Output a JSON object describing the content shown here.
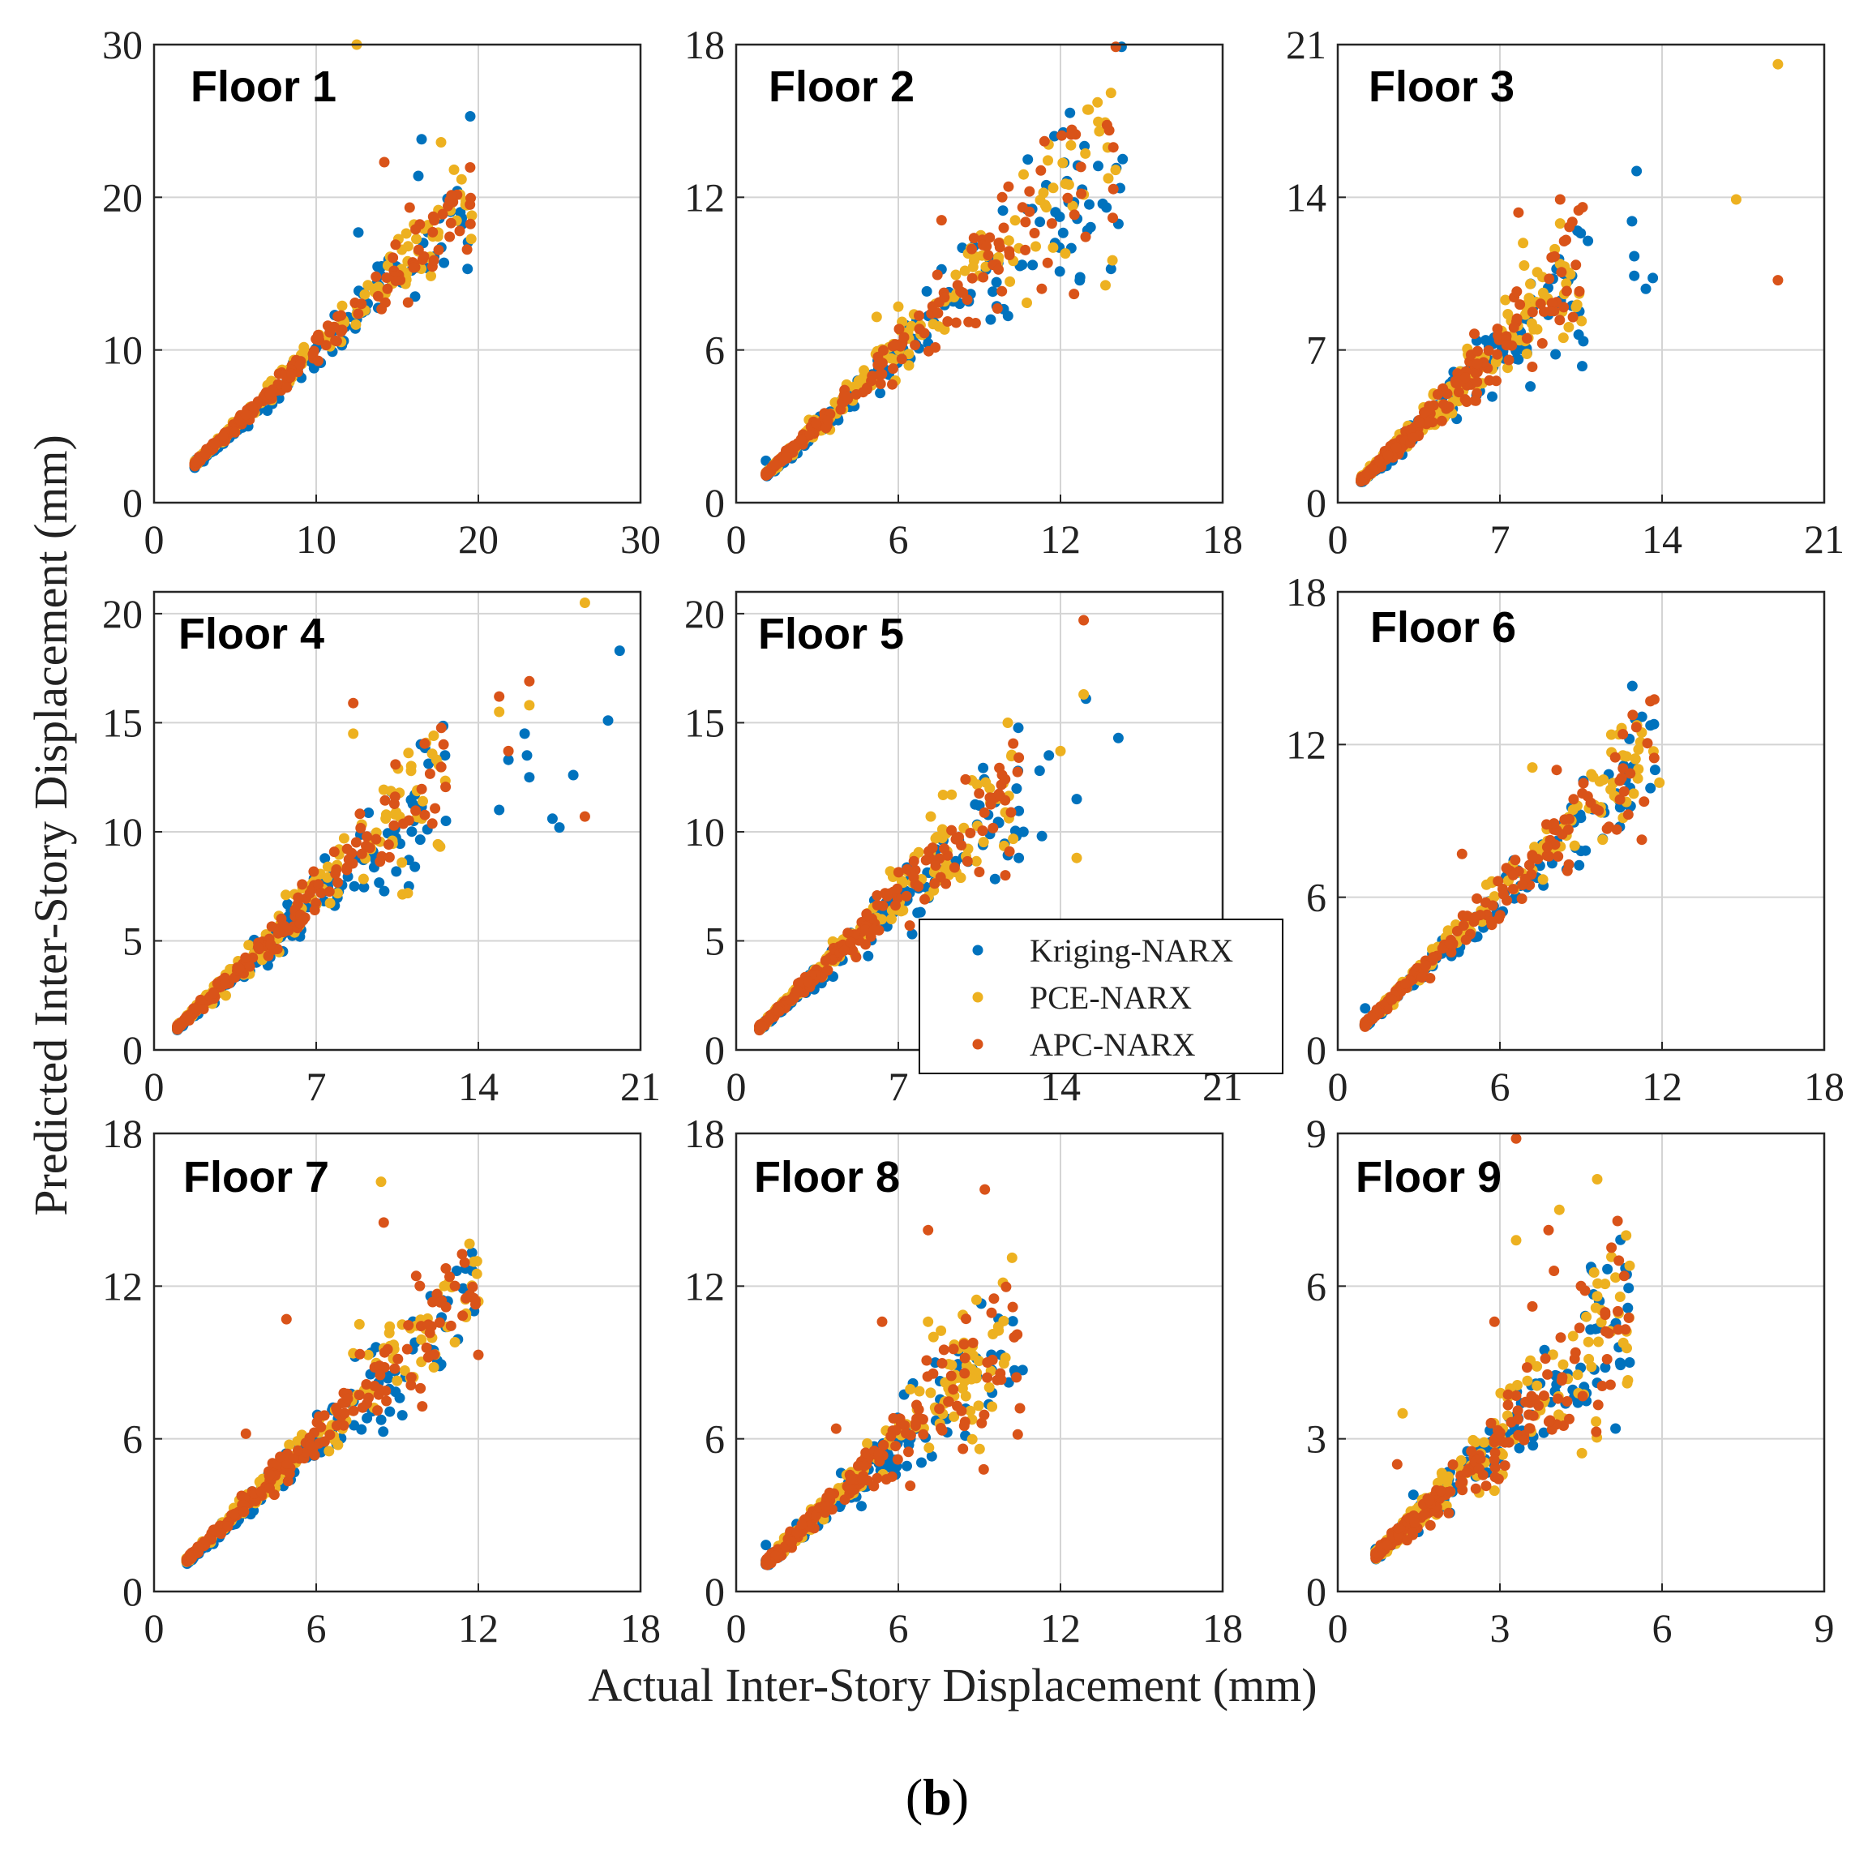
{
  "chart_data": {
    "type": "scatter",
    "xlabel": "Actual Inter-Story Displacement (mm)",
    "ylabel": "Predicted Inter-Story Displacement (mm)",
    "caption_prefix": "(",
    "caption_letter": "b",
    "caption_suffix": ")",
    "legend": {
      "placement": "floor-5 lower-right",
      "series": [
        {
          "name": "Kriging-NARX",
          "color": "#0072BD"
        },
        {
          "name": "PCE-NARX",
          "color": "#EDB120"
        },
        {
          "name": "APC-NARX",
          "color": "#D95319"
        }
      ]
    },
    "panels": [
      {
        "title": "Floor 1",
        "max": 30,
        "ticks": [
          0,
          10,
          20,
          30
        ],
        "xticklabels": [
          "0",
          "10",
          "20",
          "30"
        ],
        "yticklabels": [
          "0",
          "10",
          "20",
          "30"
        ],
        "data_range": [
          2.5,
          19.6
        ],
        "scatter": 0.09,
        "seed": 11,
        "outliers": [
          {
            "x": 12.5,
            "y": 30.0,
            "s": 1
          },
          {
            "x": 19.5,
            "y": 25.3,
            "s": 0
          },
          {
            "x": 16.5,
            "y": 23.8,
            "s": 0
          },
          {
            "x": 17.7,
            "y": 23.6,
            "s": 1
          },
          {
            "x": 14.2,
            "y": 22.3,
            "s": 2
          },
          {
            "x": 18.5,
            "y": 21.8,
            "s": 1
          },
          {
            "x": 16.3,
            "y": 21.4,
            "s": 0
          },
          {
            "x": 18.7,
            "y": 20.4,
            "s": 0
          },
          {
            "x": 19.0,
            "y": 18.3,
            "s": 0
          },
          {
            "x": 12.6,
            "y": 17.7,
            "s": 0
          },
          {
            "x": 16.6,
            "y": 17.0,
            "s": 0
          },
          {
            "x": 17.8,
            "y": 18.9,
            "s": 2
          },
          {
            "x": 16.0,
            "y": 15.4,
            "s": 2
          },
          {
            "x": 14.4,
            "y": 14.0,
            "s": 2
          },
          {
            "x": 16.1,
            "y": 13.5,
            "s": 0
          },
          {
            "x": 12.8,
            "y": 12.5,
            "s": 1
          }
        ]
      },
      {
        "title": "Floor 2",
        "max": 18,
        "ticks": [
          0,
          6,
          12,
          18
        ],
        "xticklabels": [
          "0",
          "6",
          "12",
          "18"
        ],
        "yticklabels": [
          "0",
          "6",
          "12",
          "18"
        ],
        "data_range": [
          1.1,
          14.3
        ],
        "scatter": 0.14,
        "seed": 23,
        "outliers": [
          {
            "x": 14.3,
            "y": 13.5,
            "s": 0
          },
          {
            "x": 12.8,
            "y": 12.3,
            "s": 0
          },
          {
            "x": 12.5,
            "y": 11.8,
            "s": 0
          },
          {
            "x": 13.7,
            "y": 11.6,
            "s": 0
          },
          {
            "x": 12.1,
            "y": 10.6,
            "s": 0
          },
          {
            "x": 11.8,
            "y": 10.2,
            "s": 0
          },
          {
            "x": 13.0,
            "y": 10.7,
            "s": 0
          },
          {
            "x": 12.4,
            "y": 10.0,
            "s": 0
          },
          {
            "x": 12.5,
            "y": 8.2,
            "s": 2
          },
          {
            "x": 7.6,
            "y": 11.1,
            "s": 2
          },
          {
            "x": 9.9,
            "y": 10.8,
            "s": 2
          },
          {
            "x": 8.8,
            "y": 10.4,
            "s": 2
          },
          {
            "x": 8.6,
            "y": 7.1,
            "s": 2
          },
          {
            "x": 9.9,
            "y": 7.6,
            "s": 0
          },
          {
            "x": 5.2,
            "y": 7.3,
            "s": 1
          },
          {
            "x": 6.0,
            "y": 7.7,
            "s": 1
          }
        ]
      },
      {
        "title": "Floor 3",
        "max": 21,
        "ticks": [
          0,
          7,
          14,
          21
        ],
        "xticklabels": [
          "0",
          "7",
          "14",
          "21"
        ],
        "yticklabels": [
          "0",
          "7",
          "14",
          "21"
        ],
        "data_range": [
          1.0,
          10.6
        ],
        "scatter": 0.16,
        "seed": 37,
        "outliers": [
          {
            "x": 19.0,
            "y": 20.1,
            "s": 1
          },
          {
            "x": 17.2,
            "y": 13.9,
            "s": 1
          },
          {
            "x": 19.0,
            "y": 10.2,
            "s": 2
          },
          {
            "x": 12.9,
            "y": 15.2,
            "s": 0
          },
          {
            "x": 12.7,
            "y": 12.9,
            "s": 0
          },
          {
            "x": 12.8,
            "y": 11.3,
            "s": 0
          },
          {
            "x": 12.8,
            "y": 10.4,
            "s": 0
          },
          {
            "x": 13.3,
            "y": 9.8,
            "s": 0
          },
          {
            "x": 13.6,
            "y": 10.3,
            "s": 0
          },
          {
            "x": 9.6,
            "y": 13.9,
            "s": 2
          },
          {
            "x": 7.8,
            "y": 13.3,
            "s": 2
          },
          {
            "x": 9.6,
            "y": 12.8,
            "s": 1
          },
          {
            "x": 10.4,
            "y": 13.4,
            "s": 2
          },
          {
            "x": 8.0,
            "y": 11.9,
            "s": 1
          },
          {
            "x": 10.8,
            "y": 12.0,
            "s": 0
          },
          {
            "x": 9.4,
            "y": 6.8,
            "s": 0
          },
          {
            "x": 10.6,
            "y": 7.4,
            "s": 0
          },
          {
            "x": 10.4,
            "y": 7.7,
            "s": 0
          }
        ]
      },
      {
        "title": "Floor 4",
        "max": 21,
        "ticks": [
          0,
          7,
          14,
          21
        ],
        "xticklabels": [
          "0",
          "7",
          "14",
          "21"
        ],
        "yticklabels": [
          "0",
          "5",
          "10",
          "15",
          "20"
        ],
        "yticks": [
          0,
          5,
          10,
          15,
          20
        ],
        "data_range": [
          1.0,
          12.6
        ],
        "scatter": 0.14,
        "seed": 41,
        "outliers": [
          {
            "x": 18.6,
            "y": 20.5,
            "s": 1
          },
          {
            "x": 20.1,
            "y": 18.3,
            "s": 0
          },
          {
            "x": 19.6,
            "y": 15.1,
            "s": 0
          },
          {
            "x": 16.2,
            "y": 16.9,
            "s": 2
          },
          {
            "x": 14.9,
            "y": 16.2,
            "s": 2
          },
          {
            "x": 16.2,
            "y": 15.8,
            "s": 1
          },
          {
            "x": 14.9,
            "y": 15.5,
            "s": 1
          },
          {
            "x": 16.0,
            "y": 14.5,
            "s": 0
          },
          {
            "x": 15.3,
            "y": 13.7,
            "s": 2
          },
          {
            "x": 15.3,
            "y": 13.3,
            "s": 0
          },
          {
            "x": 16.1,
            "y": 13.5,
            "s": 0
          },
          {
            "x": 16.2,
            "y": 12.5,
            "s": 0
          },
          {
            "x": 18.1,
            "y": 12.6,
            "s": 0
          },
          {
            "x": 17.5,
            "y": 10.2,
            "s": 0
          },
          {
            "x": 17.2,
            "y": 10.6,
            "s": 0
          },
          {
            "x": 18.6,
            "y": 10.7,
            "s": 2
          },
          {
            "x": 14.9,
            "y": 11.0,
            "s": 0
          },
          {
            "x": 8.6,
            "y": 15.9,
            "s": 2
          },
          {
            "x": 8.6,
            "y": 14.5,
            "s": 1
          },
          {
            "x": 11.0,
            "y": 7.5,
            "s": 0
          },
          {
            "x": 12.6,
            "y": 10.5,
            "s": 0
          },
          {
            "x": 12.5,
            "y": 14.0,
            "s": 2
          }
        ]
      },
      {
        "title": "Floor 5",
        "max": 21,
        "ticks": [
          0,
          7,
          14,
          21
        ],
        "xticklabels": [
          "0",
          "7",
          "14",
          "21"
        ],
        "yticklabels": [
          "0",
          "5",
          "10",
          "15",
          "20"
        ],
        "yticks": [
          0,
          5,
          10,
          15,
          20
        ],
        "data_range": [
          1.0,
          12.2
        ],
        "scatter": 0.13,
        "seed": 53,
        "outliers": [
          {
            "x": 15.0,
            "y": 19.7,
            "s": 2
          },
          {
            "x": 15.0,
            "y": 16.3,
            "s": 1
          },
          {
            "x": 15.1,
            "y": 16.1,
            "s": 0
          },
          {
            "x": 16.5,
            "y": 14.3,
            "s": 0
          },
          {
            "x": 14.0,
            "y": 13.7,
            "s": 1
          },
          {
            "x": 13.5,
            "y": 13.5,
            "s": 0
          },
          {
            "x": 13.1,
            "y": 12.8,
            "s": 0
          },
          {
            "x": 14.7,
            "y": 11.5,
            "s": 0
          },
          {
            "x": 14.7,
            "y": 8.8,
            "s": 1
          },
          {
            "x": 12.1,
            "y": 9.8,
            "s": 0
          },
          {
            "x": 12.4,
            "y": 10.0,
            "s": 0
          },
          {
            "x": 13.2,
            "y": 9.8,
            "s": 0
          },
          {
            "x": 12.2,
            "y": 8.8,
            "s": 0
          },
          {
            "x": 11.8,
            "y": 9.1,
            "s": 2
          },
          {
            "x": 9.9,
            "y": 12.4,
            "s": 2
          },
          {
            "x": 9.3,
            "y": 11.7,
            "s": 1
          },
          {
            "x": 8.4,
            "y": 10.7,
            "s": 1
          },
          {
            "x": 12.2,
            "y": 13.4,
            "s": 2
          }
        ]
      },
      {
        "title": "Floor 6",
        "max": 18,
        "ticks": [
          0,
          6,
          12,
          18
        ],
        "xticklabels": [
          "0",
          "6",
          "12",
          "18"
        ],
        "yticklabels": [
          "0",
          "6",
          "12",
          "18"
        ],
        "data_range": [
          1.0,
          11.8
        ],
        "scatter": 0.11,
        "seed": 67,
        "outliers": [
          {
            "x": 10.9,
            "y": 14.3,
            "s": 0
          },
          {
            "x": 11.0,
            "y": 13.0,
            "s": 0
          },
          {
            "x": 11.7,
            "y": 12.8,
            "s": 0
          },
          {
            "x": 11.2,
            "y": 12.1,
            "s": 1
          },
          {
            "x": 11.9,
            "y": 10.5,
            "s": 1
          },
          {
            "x": 10.4,
            "y": 12.4,
            "s": 1
          },
          {
            "x": 7.2,
            "y": 11.1,
            "s": 1
          },
          {
            "x": 8.1,
            "y": 11.0,
            "s": 2
          },
          {
            "x": 4.6,
            "y": 7.7,
            "s": 2
          }
        ]
      },
      {
        "title": "Floor 7",
        "max": 18,
        "ticks": [
          0,
          6,
          12,
          18
        ],
        "xticklabels": [
          "0",
          "6",
          "12",
          "18"
        ],
        "yticklabels": [
          "0",
          "6",
          "12",
          "18"
        ],
        "data_range": [
          1.2,
          12.0
        ],
        "scatter": 0.12,
        "seed": 79,
        "outliers": [
          {
            "x": 8.4,
            "y": 16.1,
            "s": 1
          },
          {
            "x": 8.5,
            "y": 14.5,
            "s": 2
          },
          {
            "x": 11.2,
            "y": 12.6,
            "s": 0
          },
          {
            "x": 9.7,
            "y": 12.4,
            "s": 2
          },
          {
            "x": 4.9,
            "y": 10.7,
            "s": 2
          },
          {
            "x": 7.6,
            "y": 10.5,
            "s": 1
          },
          {
            "x": 12.0,
            "y": 9.3,
            "s": 2
          },
          {
            "x": 12.0,
            "y": 11.4,
            "s": 1
          },
          {
            "x": 3.4,
            "y": 6.2,
            "s": 2
          }
        ]
      },
      {
        "title": "Floor 8",
        "max": 18,
        "ticks": [
          0,
          6,
          12,
          18
        ],
        "xticklabels": [
          "0",
          "6",
          "12",
          "18"
        ],
        "yticklabels": [
          "0",
          "6",
          "12",
          "18"
        ],
        "data_range": [
          1.1,
          10.5
        ],
        "scatter": 0.16,
        "seed": 83,
        "outliers": [
          {
            "x": 9.2,
            "y": 15.8,
            "s": 2
          },
          {
            "x": 7.1,
            "y": 14.2,
            "s": 2
          },
          {
            "x": 5.4,
            "y": 10.6,
            "s": 2
          },
          {
            "x": 7.1,
            "y": 10.6,
            "s": 1
          },
          {
            "x": 9.7,
            "y": 10.4,
            "s": 1
          },
          {
            "x": 10.4,
            "y": 10.1,
            "s": 2
          },
          {
            "x": 7.3,
            "y": 10.0,
            "s": 1
          },
          {
            "x": 6.8,
            "y": 6.5,
            "s": 1
          },
          {
            "x": 10.5,
            "y": 7.2,
            "s": 2
          },
          {
            "x": 3.7,
            "y": 6.4,
            "s": 2
          },
          {
            "x": 9.8,
            "y": 9.3,
            "s": 0
          },
          {
            "x": 10.6,
            "y": 8.7,
            "s": 0
          }
        ]
      },
      {
        "title": "Floor 9",
        "max": 9,
        "ticks": [
          0,
          3,
          6,
          9
        ],
        "xticklabels": [
          "0",
          "3",
          "6",
          "9"
        ],
        "yticklabels": [
          "0",
          "3",
          "6",
          "9"
        ],
        "data_range": [
          0.7,
          5.4
        ],
        "scatter": 0.2,
        "seed": 97,
        "outliers": [
          {
            "x": 3.3,
            "y": 8.9,
            "s": 2
          },
          {
            "x": 4.8,
            "y": 8.1,
            "s": 1
          },
          {
            "x": 4.1,
            "y": 7.5,
            "s": 1
          },
          {
            "x": 3.9,
            "y": 7.1,
            "s": 2
          },
          {
            "x": 3.3,
            "y": 6.9,
            "s": 1
          },
          {
            "x": 5.2,
            "y": 6.5,
            "s": 2
          },
          {
            "x": 5.3,
            "y": 6.2,
            "s": 2
          },
          {
            "x": 5.4,
            "y": 6.4,
            "s": 1
          },
          {
            "x": 4.0,
            "y": 6.3,
            "s": 2
          },
          {
            "x": 4.5,
            "y": 6.0,
            "s": 2
          },
          {
            "x": 3.6,
            "y": 5.6,
            "s": 2
          },
          {
            "x": 2.9,
            "y": 5.3,
            "s": 2
          },
          {
            "x": 4.8,
            "y": 5.8,
            "s": 1
          },
          {
            "x": 5.2,
            "y": 4.8,
            "s": 0
          },
          {
            "x": 5.4,
            "y": 4.5,
            "s": 0
          },
          {
            "x": 4.8,
            "y": 4.1,
            "s": 0
          },
          {
            "x": 4.6,
            "y": 3.9,
            "s": 0
          },
          {
            "x": 1.2,
            "y": 3.5,
            "s": 1
          },
          {
            "x": 1.1,
            "y": 2.5,
            "s": 2
          },
          {
            "x": 1.4,
            "y": 1.9,
            "s": 0
          }
        ]
      }
    ]
  }
}
